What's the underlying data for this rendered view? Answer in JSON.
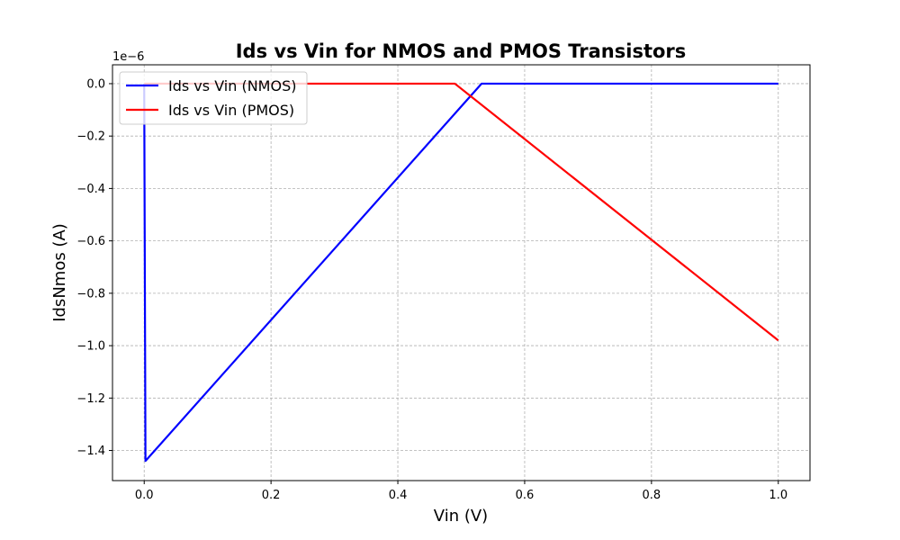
{
  "chart_data": {
    "type": "line",
    "title": "Ids vs Vin for NMOS and PMOS Transistors",
    "xlabel": "Vin (V)",
    "ylabel": "IdsNmos (A)",
    "y_offset_label": "1e−6",
    "xlim": [
      -0.05,
      1.05
    ],
    "ylim": [
      -1.515,
      0.072
    ],
    "grid": true,
    "legend_position": "top-left",
    "x_ticks": [
      0.0,
      0.2,
      0.4,
      0.6,
      0.8,
      1.0
    ],
    "x_tick_labels": [
      "0.0",
      "0.2",
      "0.4",
      "0.6",
      "0.8",
      "1.0"
    ],
    "y_ticks": [
      0.0,
      -0.2,
      -0.4,
      -0.6,
      -0.8,
      -1.0,
      -1.2,
      -1.4
    ],
    "y_tick_labels": [
      "0.0",
      "−0.2",
      "−0.4",
      "−0.6",
      "−0.8",
      "−1.0",
      "−1.2",
      "−1.4"
    ],
    "series": [
      {
        "name": "Ids vs Vin (NMOS)",
        "color": "#0000ff",
        "x": [
          0.0,
          0.0,
          0.002,
          0.532,
          1.0
        ],
        "y": [
          0.0,
          -0.01,
          -1.44,
          0.0,
          0.0
        ]
      },
      {
        "name": "Ids vs Vin (PMOS)",
        "color": "#ff0000",
        "x": [
          0.0,
          0.49,
          1.0
        ],
        "y": [
          0.0,
          0.0,
          -0.98
        ]
      }
    ]
  }
}
